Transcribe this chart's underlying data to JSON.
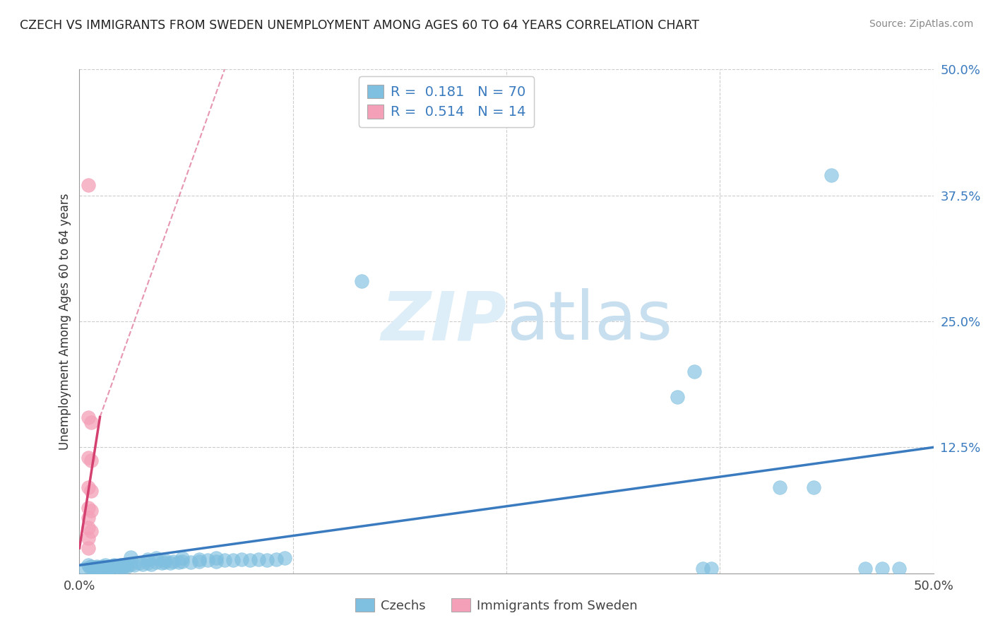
{
  "title": "CZECH VS IMMIGRANTS FROM SWEDEN UNEMPLOYMENT AMONG AGES 60 TO 64 YEARS CORRELATION CHART",
  "source": "Source: ZipAtlas.com",
  "ylabel": "Unemployment Among Ages 60 to 64 years",
  "xlim": [
    0.0,
    0.5
  ],
  "ylim": [
    0.0,
    0.5
  ],
  "xtick_labels": [
    "0.0%",
    "",
    "",
    "",
    "50.0%"
  ],
  "ytick_labels": [
    "",
    "12.5%",
    "25.0%",
    "37.5%",
    "50.0%"
  ],
  "blue_R": "0.181",
  "blue_N": "70",
  "pink_R": "0.514",
  "pink_N": "14",
  "blue_color": "#7fbfdf",
  "pink_color": "#f4a0b8",
  "blue_line_color": "#3a7bbf",
  "pink_line_color": "#d44070",
  "watermark_color": "#ddeef8",
  "blue_scatter": [
    [
      0.003,
      0.005
    ],
    [
      0.005,
      0.008
    ],
    [
      0.006,
      0.006
    ],
    [
      0.007,
      0.007
    ],
    [
      0.008,
      0.005
    ],
    [
      0.009,
      0.006
    ],
    [
      0.01,
      0.007
    ],
    [
      0.01,
      0.005
    ],
    [
      0.011,
      0.006
    ],
    [
      0.012,
      0.005
    ],
    [
      0.013,
      0.007
    ],
    [
      0.014,
      0.006
    ],
    [
      0.015,
      0.005
    ],
    [
      0.015,
      0.008
    ],
    [
      0.016,
      0.006
    ],
    [
      0.017,
      0.007
    ],
    [
      0.018,
      0.006
    ],
    [
      0.019,
      0.007
    ],
    [
      0.02,
      0.005
    ],
    [
      0.02,
      0.008
    ],
    [
      0.022,
      0.007
    ],
    [
      0.023,
      0.006
    ],
    [
      0.024,
      0.008
    ],
    [
      0.025,
      0.007
    ],
    [
      0.026,
      0.006
    ],
    [
      0.027,
      0.008
    ],
    [
      0.028,
      0.007
    ],
    [
      0.03,
      0.009
    ],
    [
      0.032,
      0.008
    ],
    [
      0.035,
      0.01
    ],
    [
      0.037,
      0.009
    ],
    [
      0.04,
      0.01
    ],
    [
      0.042,
      0.009
    ],
    [
      0.045,
      0.011
    ],
    [
      0.048,
      0.01
    ],
    [
      0.05,
      0.011
    ],
    [
      0.053,
      0.01
    ],
    [
      0.055,
      0.012
    ],
    [
      0.058,
      0.011
    ],
    [
      0.06,
      0.012
    ],
    [
      0.065,
      0.011
    ],
    [
      0.07,
      0.012
    ],
    [
      0.075,
      0.013
    ],
    [
      0.08,
      0.012
    ],
    [
      0.085,
      0.013
    ],
    [
      0.09,
      0.013
    ],
    [
      0.095,
      0.014
    ],
    [
      0.1,
      0.013
    ],
    [
      0.105,
      0.014
    ],
    [
      0.11,
      0.013
    ],
    [
      0.115,
      0.014
    ],
    [
      0.12,
      0.015
    ],
    [
      0.03,
      0.016
    ],
    [
      0.04,
      0.014
    ],
    [
      0.045,
      0.015
    ],
    [
      0.05,
      0.013
    ],
    [
      0.06,
      0.015
    ],
    [
      0.07,
      0.014
    ],
    [
      0.08,
      0.015
    ],
    [
      0.165,
      0.29
    ],
    [
      0.35,
      0.175
    ],
    [
      0.36,
      0.2
    ],
    [
      0.44,
      0.395
    ],
    [
      0.365,
      0.005
    ],
    [
      0.37,
      0.005
    ],
    [
      0.41,
      0.085
    ],
    [
      0.43,
      0.085
    ],
    [
      0.46,
      0.005
    ],
    [
      0.47,
      0.005
    ],
    [
      0.48,
      0.005
    ]
  ],
  "pink_scatter": [
    [
      0.005,
      0.385
    ],
    [
      0.005,
      0.155
    ],
    [
      0.007,
      0.15
    ],
    [
      0.005,
      0.115
    ],
    [
      0.007,
      0.112
    ],
    [
      0.005,
      0.085
    ],
    [
      0.007,
      0.082
    ],
    [
      0.005,
      0.065
    ],
    [
      0.007,
      0.062
    ],
    [
      0.005,
      0.055
    ],
    [
      0.005,
      0.045
    ],
    [
      0.007,
      0.042
    ],
    [
      0.005,
      0.035
    ],
    [
      0.005,
      0.025
    ]
  ],
  "blue_trend": [
    0.0,
    0.008,
    0.5,
    0.125
  ],
  "pink_solid_trend": [
    0.0,
    0.025,
    0.012,
    0.155
  ],
  "pink_dashed_trend": [
    0.012,
    0.155,
    0.085,
    0.5
  ]
}
